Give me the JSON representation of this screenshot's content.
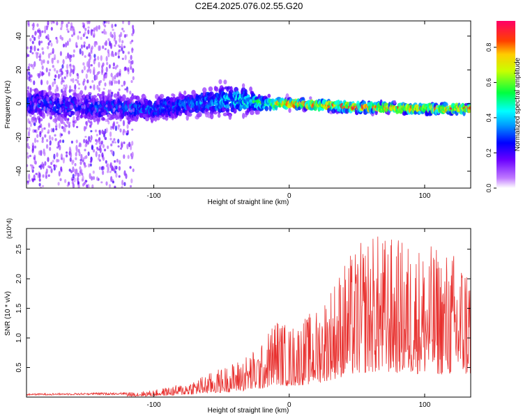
{
  "figure": {
    "title": "C2E4.2025.076.02.55.G20"
  },
  "chart_data": [
    {
      "type": "heatmap",
      "xlabel": "Height of straight line (km)",
      "ylabel": "Frequency (Hz)",
      "xlim": [
        -194,
        134
      ],
      "ylim": [
        -50,
        49
      ],
      "x_ticks": [
        -100,
        0,
        100
      ],
      "x_tick_labels": [
        "-100",
        "0",
        "100"
      ],
      "y_ticks": [
        -40,
        -20,
        0,
        20,
        40
      ],
      "y_tick_labels": [
        "-40",
        "-20",
        "0",
        "20",
        "40"
      ],
      "colorbar": {
        "label": "Normalized spectral amplitude",
        "range": [
          0,
          0.95
        ],
        "ticks": [
          0.0,
          0.2,
          0.4,
          0.6,
          0.8
        ],
        "tick_labels": [
          "0.0",
          "0.2",
          "0.4",
          "0.6",
          "0.8"
        ]
      },
      "ridge": {
        "x": [
          -194,
          -150,
          -100,
          -70,
          -50,
          -35,
          -20,
          0,
          50,
          100,
          134
        ],
        "center_hz": [
          0,
          -2,
          -3,
          0,
          2,
          2,
          0,
          0,
          -2,
          -3,
          -3
        ],
        "spread_hz": [
          8,
          7,
          6,
          6,
          8,
          7,
          4,
          2.5,
          2.5,
          2.5,
          2.5
        ],
        "peak_amplitude": [
          0.3,
          0.3,
          0.32,
          0.34,
          0.4,
          0.45,
          0.55,
          0.8,
          0.85,
          0.85,
          0.82
        ]
      },
      "noise_region_x": [
        -194,
        -115
      ]
    },
    {
      "type": "line",
      "xlabel": "Height of straight line (km)",
      "ylabel": "SNR (10 * v/v)",
      "y_multiplier": "(x10^4)",
      "xlim": [
        -194,
        134
      ],
      "ylim": [
        0,
        2.85
      ],
      "x_ticks": [
        -100,
        0,
        100
      ],
      "x_tick_labels": [
        "-100",
        "0",
        "100"
      ],
      "y_ticks": [
        0.5,
        1.0,
        1.5,
        2.0,
        2.5
      ],
      "y_tick_labels": [
        "0.5",
        "1.0",
        "1.5",
        "2.0",
        "2.5"
      ],
      "color": "#e8312f",
      "envelope": {
        "x": [
          -194,
          -120,
          -100,
          -80,
          -60,
          -40,
          -20,
          -10,
          0,
          20,
          40,
          60,
          80,
          100,
          120,
          134
        ],
        "y": [
          0.06,
          0.08,
          0.12,
          0.22,
          0.4,
          0.6,
          0.9,
          1.4,
          1.2,
          1.5,
          2.3,
          2.8,
          2.7,
          2.6,
          2.5,
          2.4
        ]
      }
    }
  ]
}
